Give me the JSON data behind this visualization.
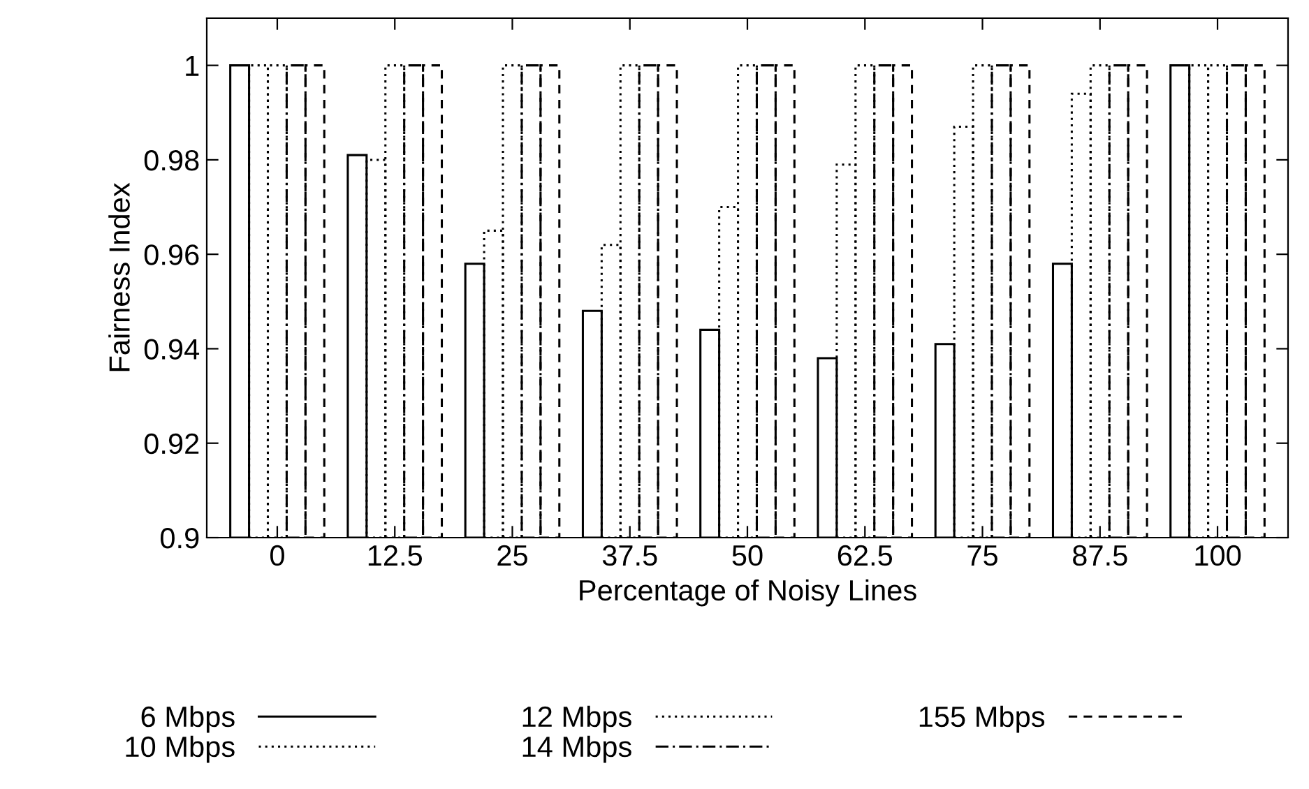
{
  "chart_data": {
    "type": "bar",
    "xlabel": "Percentage of Noisy Lines",
    "ylabel": "Fairness Index",
    "categories": [
      "0",
      "12.5",
      "25",
      "37.5",
      "50",
      "62.5",
      "75",
      "87.5",
      "100"
    ],
    "ylim": [
      0.9,
      1.01
    ],
    "yticks": [
      0.9,
      0.92,
      0.94,
      0.96,
      0.98,
      1
    ],
    "grid": false,
    "legend": "bottom",
    "series": [
      {
        "name": "6 Mbps",
        "color": "#000000",
        "line_style": "solid",
        "values": [
          1,
          0.981,
          0.958,
          0.948,
          0.944,
          0.938,
          0.941,
          0.958,
          1
        ]
      },
      {
        "name": "10 Mbps",
        "color": "#000000",
        "line_style": "dotted",
        "values": [
          1,
          0.98,
          0.965,
          0.962,
          0.97,
          0.979,
          0.987,
          0.994,
          1
        ]
      },
      {
        "name": "12 Mbps",
        "color": "#000000",
        "line_style": "dotted",
        "values": [
          1,
          1,
          1,
          1,
          1,
          1,
          1,
          1,
          1
        ]
      },
      {
        "name": "14 Mbps",
        "color": "#000000",
        "line_style": "dashdot",
        "values": [
          1,
          1,
          1,
          1,
          1,
          1,
          1,
          1,
          1
        ]
      },
      {
        "name": "155 Mbps",
        "color": "#000000",
        "line_style": "dashed",
        "values": [
          1,
          1,
          1,
          1,
          1,
          1,
          1,
          1,
          1
        ]
      }
    ]
  }
}
